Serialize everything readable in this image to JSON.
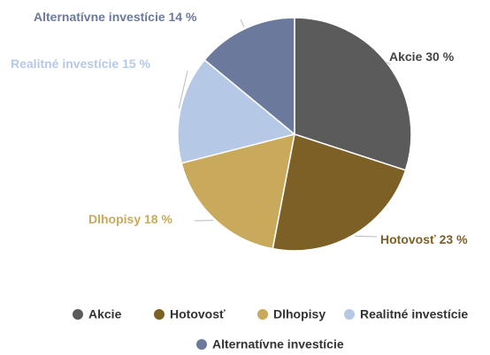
{
  "chart_data": {
    "type": "pie",
    "categories": [
      "Akcie",
      "Hotovosť",
      "Dlhopisy",
      "Realitné investície",
      "Alternatívne investície"
    ],
    "values": [
      30,
      23,
      18,
      15,
      14
    ],
    "value_labels": [
      "30 %",
      "23 %",
      "18 %",
      "15 %",
      "14 %"
    ],
    "colors": [
      "#5b5b5b",
      "#7d6026",
      "#c9a95c",
      "#b5c9e7",
      "#6b7a9c"
    ],
    "legend": "bottom"
  }
}
